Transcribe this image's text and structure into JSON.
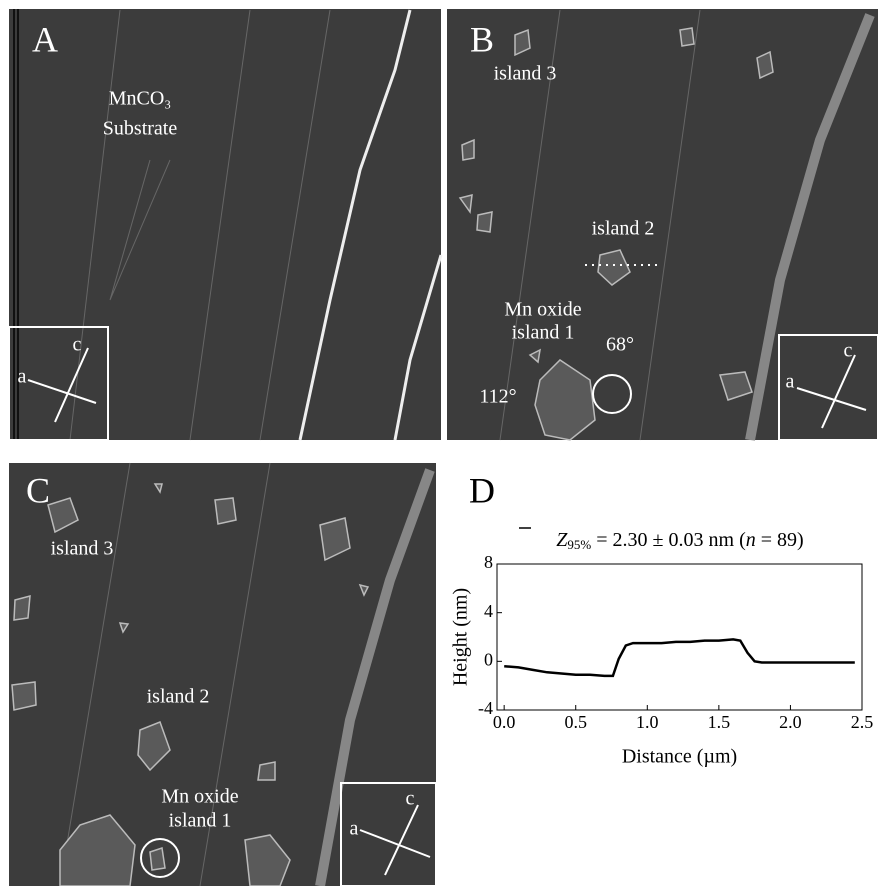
{
  "panels": [
    {
      "letter": "A",
      "labels": [
        "MnCO₃",
        "Substrate"
      ],
      "axes": [
        "a",
        "c"
      ]
    },
    {
      "letter": "B",
      "labels": [
        "island 3",
        "island 2",
        "Mn oxide",
        "island 1",
        "68°",
        "112°"
      ],
      "axes": [
        "a",
        "c"
      ]
    },
    {
      "letter": "C",
      "labels": [
        "island 3",
        "island 2",
        "Mn oxide",
        "island 1"
      ],
      "axes": [
        "a",
        "c"
      ]
    }
  ],
  "chart_data": {
    "type": "line",
    "panel_letter": "D",
    "title_parts": [
      "Z",
      "95%",
      " = 2.30 ± 0.03 nm (",
      "n",
      " = 89)"
    ],
    "x_label": "Distance (µm)",
    "y_label": "Height (nm)",
    "x": [
      0,
      0.1,
      0.2,
      0.3,
      0.4,
      0.5,
      0.6,
      0.7,
      0.76,
      0.8,
      0.85,
      0.9,
      1.0,
      1.1,
      1.2,
      1.3,
      1.4,
      1.5,
      1.6,
      1.65,
      1.7,
      1.75,
      1.8,
      1.9,
      2.0,
      2.1,
      2.2,
      2.3,
      2.4,
      2.45
    ],
    "series": [
      {
        "color": "#000000",
        "values": [
          -0.4,
          -0.5,
          -0.7,
          -0.9,
          -1.0,
          -1.1,
          -1.1,
          -1.2,
          -1.2,
          0.2,
          1.3,
          1.5,
          1.5,
          1.5,
          1.6,
          1.6,
          1.7,
          1.7,
          1.8,
          1.7,
          0.7,
          0.0,
          -0.1,
          -0.1,
          -0.1,
          -0.1,
          -0.1,
          -0.1,
          -0.1,
          -0.1
        ]
      }
    ],
    "xlim": [
      -0.05,
      2.5
    ],
    "ylim": [
      -4,
      8
    ],
    "xticks": [
      {
        "value": 0,
        "label": "0.0"
      },
      0.5,
      {
        "value": 1,
        "label": "1.0"
      },
      1.5,
      {
        "value": 2,
        "label": "2.0"
      },
      2.5
    ],
    "yticks": [
      -4,
      0,
      4,
      8
    ]
  }
}
